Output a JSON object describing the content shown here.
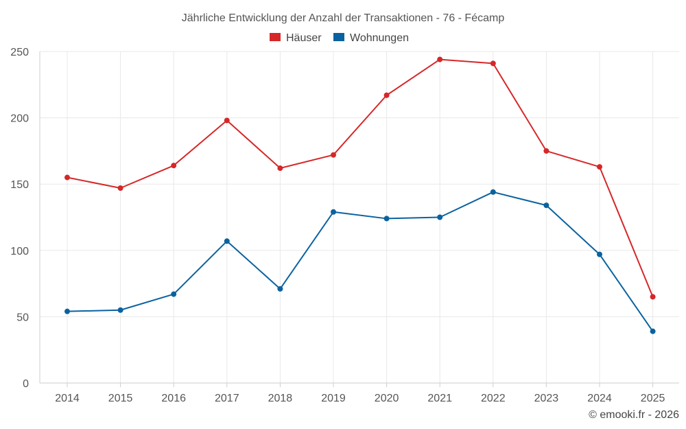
{
  "chart_data": {
    "type": "line",
    "title": "Jährliche Entwicklung der Anzahl der Transaktionen - 76 - Fécamp",
    "xlabel": "",
    "ylabel": "",
    "categories": [
      "2014",
      "2015",
      "2016",
      "2017",
      "2018",
      "2019",
      "2020",
      "2021",
      "2022",
      "2023",
      "2024",
      "2025"
    ],
    "ylim": [
      0,
      250
    ],
    "yticks": [
      0,
      50,
      100,
      150,
      200,
      250
    ],
    "grid": true,
    "legend_position": "top-center",
    "series": [
      {
        "name": "Häuser",
        "color": "#d62728",
        "values": [
          155,
          147,
          164,
          198,
          162,
          172,
          217,
          244,
          241,
          175,
          163,
          65
        ]
      },
      {
        "name": "Wohnungen",
        "color": "#0a62a0",
        "values": [
          54,
          55,
          67,
          107,
          71,
          129,
          124,
          125,
          144,
          134,
          97,
          39
        ]
      }
    ]
  },
  "credit": "© emooki.fr - 2026"
}
